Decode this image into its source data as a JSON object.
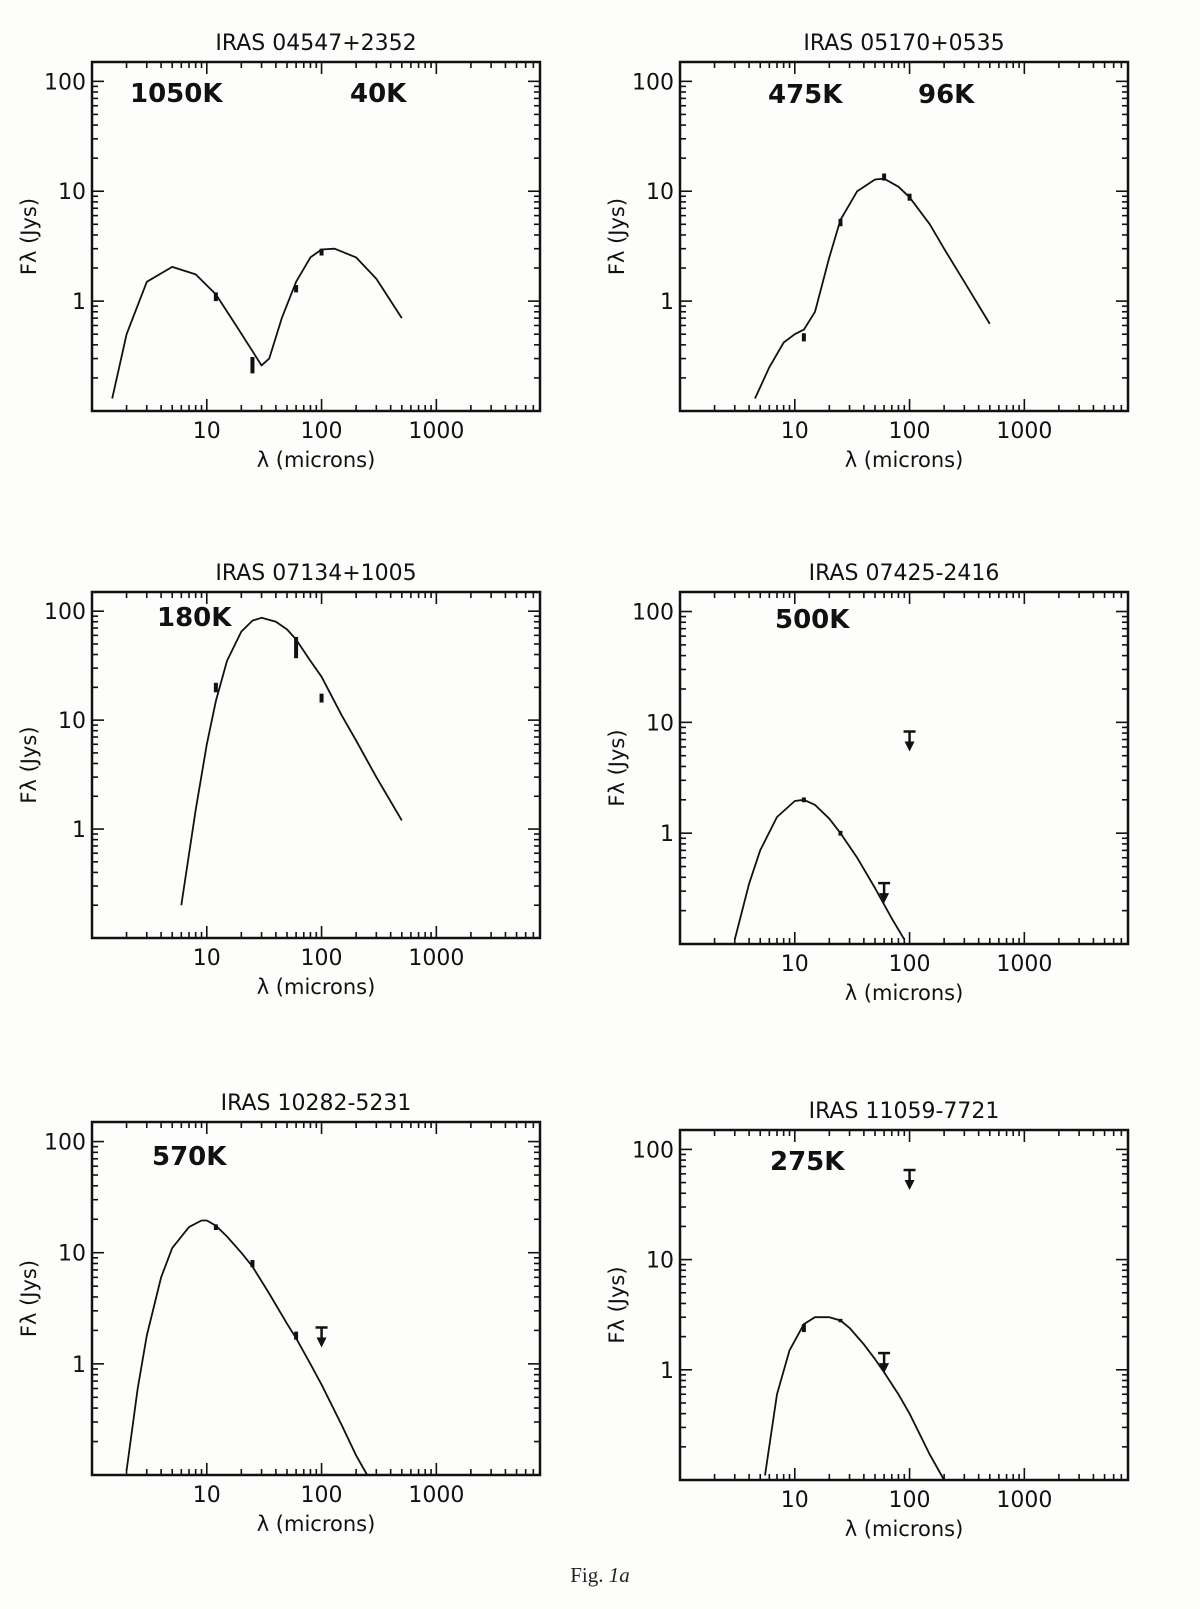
{
  "figure": {
    "caption_prefix": "Fig.",
    "caption_number": "1a"
  },
  "chart_data": [
    {
      "type": "line",
      "title": "IRAS 04547+2352",
      "xlabel": "λ (microns)",
      "ylabel": "Fλ (Jys)",
      "xscale": "log",
      "yscale": "log",
      "xlim": [
        1,
        8000
      ],
      "ylim": [
        0.1,
        150
      ],
      "xticks": [
        10,
        100,
        1000
      ],
      "yticks": [
        1,
        10,
        100
      ],
      "temperatures": [
        "1050K",
        "40K"
      ],
      "model_curve": {
        "x": [
          1.5,
          2,
          3,
          5,
          8,
          12,
          18,
          25,
          30,
          35,
          45,
          60,
          80,
          100,
          130,
          200,
          300,
          500
        ],
        "y": [
          0.13,
          0.5,
          1.5,
          2.05,
          1.75,
          1.15,
          0.6,
          0.35,
          0.26,
          0.3,
          0.7,
          1.5,
          2.5,
          2.95,
          3.0,
          2.5,
          1.6,
          0.7
        ]
      },
      "detections": [
        {
          "x": 12,
          "y": 1.1,
          "bar": [
            1.0,
            1.2
          ]
        },
        {
          "x": 25,
          "y": 0.26,
          "bar": [
            0.22,
            0.31
          ]
        },
        {
          "x": 60,
          "y": 1.3,
          "bar": [
            1.2,
            1.4
          ]
        },
        {
          "x": 100,
          "y": 2.8,
          "bar": [
            2.6,
            3.0
          ]
        }
      ],
      "upper_limits": []
    },
    {
      "type": "line",
      "title": "IRAS 05170+0535",
      "xlabel": "λ (microns)",
      "ylabel": "Fλ (Jys)",
      "xscale": "log",
      "yscale": "log",
      "xlim": [
        1,
        8000
      ],
      "ylim": [
        0.1,
        150
      ],
      "xticks": [
        10,
        100,
        1000
      ],
      "yticks": [
        1,
        10,
        100
      ],
      "temperatures": [
        "475K",
        "96K"
      ],
      "model_curve": {
        "x": [
          4.5,
          6,
          8,
          10,
          12,
          15,
          20,
          25,
          35,
          50,
          60,
          80,
          100,
          150,
          200,
          300,
          500
        ],
        "y": [
          0.13,
          0.25,
          0.42,
          0.5,
          0.55,
          0.8,
          2.5,
          5.5,
          10,
          12.8,
          13,
          11,
          8.8,
          5,
          3,
          1.5,
          0.62
        ]
      },
      "detections": [
        {
          "x": 12,
          "y": 0.47,
          "bar": [
            0.43,
            0.51
          ]
        },
        {
          "x": 25,
          "y": 5.2,
          "bar": [
            4.8,
            5.6
          ]
        },
        {
          "x": 60,
          "y": 13.5,
          "bar": [
            12.5,
            14.5
          ]
        },
        {
          "x": 100,
          "y": 8.8,
          "bar": [
            8.2,
            9.5
          ]
        }
      ],
      "upper_limits": []
    },
    {
      "type": "line",
      "title": "IRAS 07134+1005",
      "xlabel": "λ (microns)",
      "ylabel": "Fλ (Jys)",
      "xscale": "log",
      "yscale": "log",
      "xlim": [
        1,
        8000
      ],
      "ylim": [
        0.1,
        150
      ],
      "xticks": [
        10,
        100,
        1000
      ],
      "yticks": [
        1,
        10,
        100
      ],
      "temperatures": [
        "180K"
      ],
      "model_curve": {
        "x": [
          6,
          8,
          10,
          12,
          15,
          20,
          25,
          30,
          40,
          50,
          60,
          80,
          100,
          150,
          200,
          300,
          500
        ],
        "y": [
          0.2,
          1.5,
          6,
          15,
          35,
          65,
          82,
          87,
          80,
          68,
          55,
          35,
          25,
          11,
          6.5,
          3,
          1.2
        ]
      },
      "detections": [
        {
          "x": 12,
          "y": 20,
          "bar": [
            18,
            22
          ]
        },
        {
          "x": 60,
          "y": 45,
          "bar": [
            37,
            58
          ]
        },
        {
          "x": 100,
          "y": 16,
          "bar": [
            14.5,
            17.5
          ]
        }
      ],
      "upper_limits": []
    },
    {
      "type": "line",
      "title": "IRAS 07425-2416",
      "xlabel": "λ (microns)",
      "ylabel": "Fλ (Jys)",
      "xscale": "log",
      "yscale": "log",
      "xlim": [
        1,
        8000
      ],
      "ylim": [
        0.1,
        150
      ],
      "xticks": [
        10,
        100,
        1000
      ],
      "yticks": [
        1,
        10,
        100
      ],
      "temperatures": [
        "500K"
      ],
      "model_curve": {
        "x": [
          3,
          4,
          5,
          7,
          10,
          12,
          15,
          20,
          25,
          35,
          50,
          70,
          90
        ],
        "y": [
          0.11,
          0.35,
          0.7,
          1.4,
          1.95,
          2.0,
          1.8,
          1.35,
          1.0,
          0.6,
          0.32,
          0.17,
          0.11
        ]
      },
      "detections": [
        {
          "x": 12,
          "y": 2.0,
          "bar": [
            1.9,
            2.1
          ]
        },
        {
          "x": 25,
          "y": 1.0,
          "bar": [
            0.95,
            1.05
          ]
        }
      ],
      "upper_limits": [
        {
          "x": 60,
          "y": 0.3
        },
        {
          "x": 100,
          "y": 7.0
        }
      ]
    },
    {
      "type": "line",
      "title": "IRAS 10282-5231",
      "xlabel": "λ (microns)",
      "ylabel": "Fλ (Jys)",
      "xscale": "log",
      "yscale": "log",
      "xlim": [
        1,
        8000
      ],
      "ylim": [
        0.1,
        150
      ],
      "xticks": [
        10,
        100,
        1000
      ],
      "yticks": [
        1,
        10,
        100
      ],
      "temperatures": [
        "570K"
      ],
      "model_curve": {
        "x": [
          2,
          2.5,
          3,
          4,
          5,
          7,
          9,
          10,
          12,
          15,
          20,
          25,
          35,
          50,
          60,
          80,
          100,
          150,
          200,
          250
        ],
        "y": [
          0.11,
          0.6,
          1.8,
          6,
          11,
          17,
          19.5,
          19.5,
          17.5,
          14,
          10,
          7.5,
          4.3,
          2.3,
          1.7,
          1.0,
          0.65,
          0.28,
          0.15,
          0.1
        ]
      },
      "detections": [
        {
          "x": 12,
          "y": 17,
          "bar": [
            16,
            18
          ]
        },
        {
          "x": 25,
          "y": 8.0,
          "bar": [
            7.4,
            8.6
          ]
        },
        {
          "x": 60,
          "y": 1.8,
          "bar": [
            1.65,
            1.95
          ]
        }
      ],
      "upper_limits": [
        {
          "x": 100,
          "y": 1.8
        }
      ]
    },
    {
      "type": "line",
      "title": "IRAS 11059-7721",
      "xlabel": "λ (microns)",
      "ylabel": "Fλ (Jys)",
      "xscale": "log",
      "yscale": "log",
      "xlim": [
        1,
        8000
      ],
      "ylim": [
        0.1,
        150
      ],
      "xticks": [
        10,
        100,
        1000
      ],
      "yticks": [
        1,
        10,
        100
      ],
      "temperatures": [
        "275K"
      ],
      "model_curve": {
        "x": [
          5.5,
          7,
          9,
          12,
          15,
          20,
          25,
          30,
          40,
          50,
          60,
          80,
          100,
          150,
          200
        ],
        "y": [
          0.11,
          0.6,
          1.5,
          2.6,
          3.0,
          3.0,
          2.8,
          2.4,
          1.7,
          1.25,
          0.95,
          0.6,
          0.4,
          0.17,
          0.1
        ]
      },
      "detections": [
        {
          "x": 12,
          "y": 2.4,
          "bar": [
            2.2,
            2.6
          ]
        },
        {
          "x": 25,
          "y": 2.8,
          "bar": [
            2.7,
            2.9
          ]
        }
      ],
      "upper_limits": [
        {
          "x": 60,
          "y": 1.2
        },
        {
          "x": 100,
          "y": 55
        }
      ]
    }
  ]
}
